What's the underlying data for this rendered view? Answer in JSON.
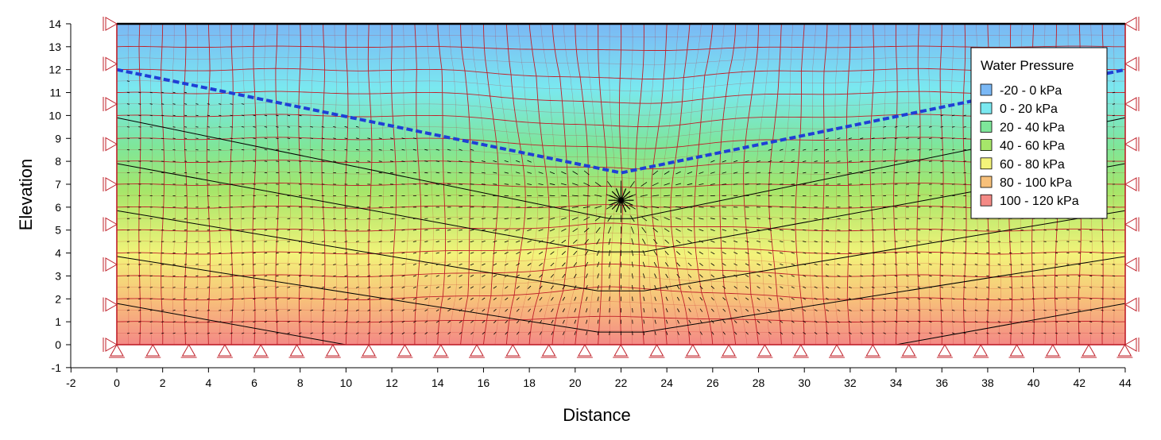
{
  "figure": {
    "xlabel": "Distance",
    "ylabel": "Elevation",
    "x_ticks": [
      "-2",
      "0",
      "2",
      "4",
      "6",
      "8",
      "10",
      "12",
      "14",
      "16",
      "18",
      "20",
      "22",
      "24",
      "26",
      "28",
      "30",
      "32",
      "34",
      "36",
      "38",
      "40",
      "42",
      "44"
    ],
    "y_ticks": [
      "-1",
      "0",
      "1",
      "2",
      "3",
      "4",
      "5",
      "6",
      "7",
      "8",
      "9",
      "10",
      "11",
      "12",
      "13",
      "14"
    ],
    "xlim": [
      -2,
      44
    ],
    "ylim": [
      -1,
      14
    ],
    "domain": {
      "x": [
        0,
        44
      ],
      "y": [
        0,
        14
      ]
    },
    "mesh": {
      "nx": 44,
      "ny": 14,
      "sub": 2
    },
    "water_table": [
      [
        0,
        12
      ],
      [
        22,
        7.5
      ],
      [
        44,
        12
      ]
    ],
    "contours": [
      {
        "level": 40,
        "points": [
          [
            0,
            9.9
          ],
          [
            21.5,
            5.5
          ],
          [
            22.5,
            5.5
          ],
          [
            44,
            9.9
          ]
        ]
      },
      {
        "level": 60,
        "points": [
          [
            0,
            7.9
          ],
          [
            21,
            4.05
          ],
          [
            23,
            4.05
          ],
          [
            44,
            7.9
          ]
        ]
      },
      {
        "level": 80,
        "points": [
          [
            0,
            5.85
          ],
          [
            21,
            2.35
          ],
          [
            23,
            2.35
          ],
          [
            44,
            5.85
          ]
        ]
      },
      {
        "level": 100,
        "points": [
          [
            0,
            3.85
          ],
          [
            21,
            0.55
          ],
          [
            23,
            0.55
          ],
          [
            44,
            3.85
          ]
        ]
      },
      {
        "level": 120,
        "points": [
          [
            0,
            1.8
          ],
          [
            10,
            0
          ],
          [
            34,
            0
          ],
          [
            44,
            1.8
          ]
        ]
      }
    ],
    "sink": {
      "x": 22,
      "y": 6.3
    },
    "pressure_scale": {
      "top": -22,
      "bottom": 120
    },
    "legend": {
      "title": "Water Pressure",
      "position": "top-right",
      "items": [
        {
          "label": "-20 - 0 kPa",
          "color": "#7ab8f5"
        },
        {
          "label": "0 - 20 kPa",
          "color": "#7ae8f0"
        },
        {
          "label": "20 - 40 kPa",
          "color": "#7ee69a"
        },
        {
          "label": "40 - 60 kPa",
          "color": "#a6e66a"
        },
        {
          "label": "60 - 80 kPa",
          "color": "#f3f37a"
        },
        {
          "label": "80 - 100 kPa",
          "color": "#f7c07a"
        },
        {
          "label": "100 - 120 kPa",
          "color": "#f48a86"
        }
      ]
    },
    "colors": {
      "mesh": "#c0202a",
      "water_table": "#1f3fd6",
      "contour": "#000000",
      "boundary": "#c0202a",
      "border": "#000000"
    }
  }
}
